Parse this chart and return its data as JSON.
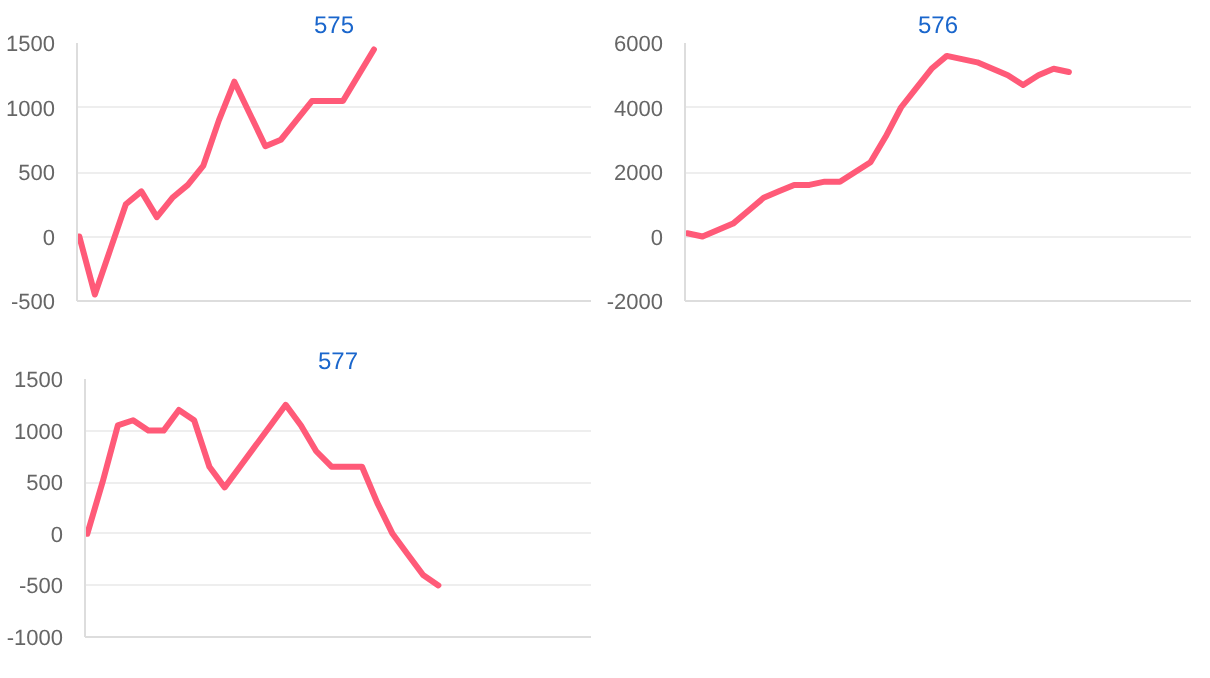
{
  "chart_data": [
    {
      "type": "line",
      "title": "575",
      "tick_labels": "y",
      "grid": "y",
      "ylim": [
        -500,
        1500
      ],
      "yticks": [
        -500,
        0,
        500,
        1000,
        1500
      ],
      "categories": [
        null,
        null,
        null,
        null,
        null,
        null,
        null,
        null,
        null,
        null,
        null,
        null,
        null,
        null,
        null,
        null,
        null,
        null,
        null,
        null,
        null,
        null,
        null,
        null,
        null,
        null,
        null,
        null,
        null,
        null,
        null,
        null,
        null,
        null
      ],
      "series": [
        {
          "color": "#ff5a78",
          "values": [
            0,
            -450,
            -100,
            250,
            350,
            150,
            300,
            400,
            550,
            900,
            1200,
            950,
            700,
            750,
            900,
            1050,
            1050,
            1050,
            1250,
            1450,
            null,
            null,
            null,
            null,
            null,
            null,
            null,
            null,
            null,
            null,
            null,
            null,
            null,
            null
          ]
        }
      ]
    },
    {
      "type": "line",
      "title": "576",
      "tick_labels": "y",
      "grid": "y",
      "ylim": [
        -2000,
        6000
      ],
      "yticks": [
        -2000,
        0,
        2000,
        4000,
        6000
      ],
      "categories": [
        null,
        null,
        null,
        null,
        null,
        null,
        null,
        null,
        null,
        null,
        null,
        null,
        null,
        null,
        null,
        null,
        null,
        null,
        null,
        null,
        null,
        null,
        null,
        null,
        null,
        null,
        null,
        null,
        null,
        null,
        null,
        null,
        null,
        null
      ],
      "series": [
        {
          "color": "#ff5a78",
          "values": [
            100,
            0,
            200,
            400,
            800,
            1200,
            1400,
            1600,
            1600,
            1700,
            1700,
            2000,
            2300,
            3100,
            4000,
            4600,
            5200,
            5600,
            5500,
            5400,
            5200,
            5000,
            4700,
            5000,
            5200,
            5100,
            null,
            null,
            null,
            null,
            null,
            null,
            null,
            null
          ]
        }
      ]
    },
    {
      "type": "line",
      "title": "577",
      "tick_labels": "y",
      "grid": "y",
      "ylim": [
        -1000,
        1500
      ],
      "yticks": [
        -1000,
        -500,
        0,
        500,
        1000,
        1500
      ],
      "categories": [
        null,
        null,
        null,
        null,
        null,
        null,
        null,
        null,
        null,
        null,
        null,
        null,
        null,
        null,
        null,
        null,
        null,
        null,
        null,
        null,
        null,
        null,
        null,
        null,
        null,
        null,
        null,
        null,
        null,
        null,
        null,
        null,
        null,
        null
      ],
      "series": [
        {
          "color": "#ff5a78",
          "values": [
            0,
            500,
            1050,
            1100,
            1000,
            1000,
            1200,
            1100,
            650,
            450,
            650,
            850,
            1050,
            1250,
            1050,
            800,
            650,
            650,
            650,
            300,
            0,
            -200,
            -400,
            -500,
            null,
            null,
            null,
            null,
            null,
            null,
            null,
            null,
            null,
            null
          ]
        }
      ]
    }
  ]
}
